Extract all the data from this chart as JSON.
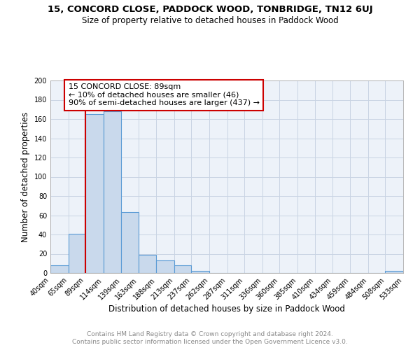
{
  "title": "15, CONCORD CLOSE, PADDOCK WOOD, TONBRIDGE, TN12 6UJ",
  "subtitle": "Size of property relative to detached houses in Paddock Wood",
  "xlabel": "Distribution of detached houses by size in Paddock Wood",
  "ylabel": "Number of detached properties",
  "bin_edges": [
    40,
    65,
    89,
    114,
    139,
    163,
    188,
    213,
    237,
    262,
    287,
    311,
    336,
    360,
    385,
    410,
    434,
    459,
    484,
    508,
    533
  ],
  "bar_heights": [
    8,
    41,
    165,
    168,
    63,
    19,
    13,
    8,
    2,
    0,
    0,
    0,
    0,
    0,
    0,
    0,
    0,
    0,
    0,
    2
  ],
  "bar_color": "#c9d9ec",
  "bar_edge_color": "#5b9bd5",
  "grid_color": "#c8d4e3",
  "background_color": "#edf2f9",
  "red_line_x": 89,
  "annotation_text": "15 CONCORD CLOSE: 89sqm\n← 10% of detached houses are smaller (46)\n90% of semi-detached houses are larger (437) →",
  "annotation_box_color": "#ffffff",
  "annotation_border_color": "#cc0000",
  "property_line_color": "#cc0000",
  "ylim": [
    0,
    200
  ],
  "yticks": [
    0,
    20,
    40,
    60,
    80,
    100,
    120,
    140,
    160,
    180,
    200
  ],
  "footnote1": "Contains HM Land Registry data © Crown copyright and database right 2024.",
  "footnote2": "Contains public sector information licensed under the Open Government Licence v3.0.",
  "title_fontsize": 9.5,
  "subtitle_fontsize": 8.5,
  "xlabel_fontsize": 8.5,
  "ylabel_fontsize": 8.5,
  "tick_fontsize": 7,
  "annotation_fontsize": 8,
  "footnote_fontsize": 6.5
}
